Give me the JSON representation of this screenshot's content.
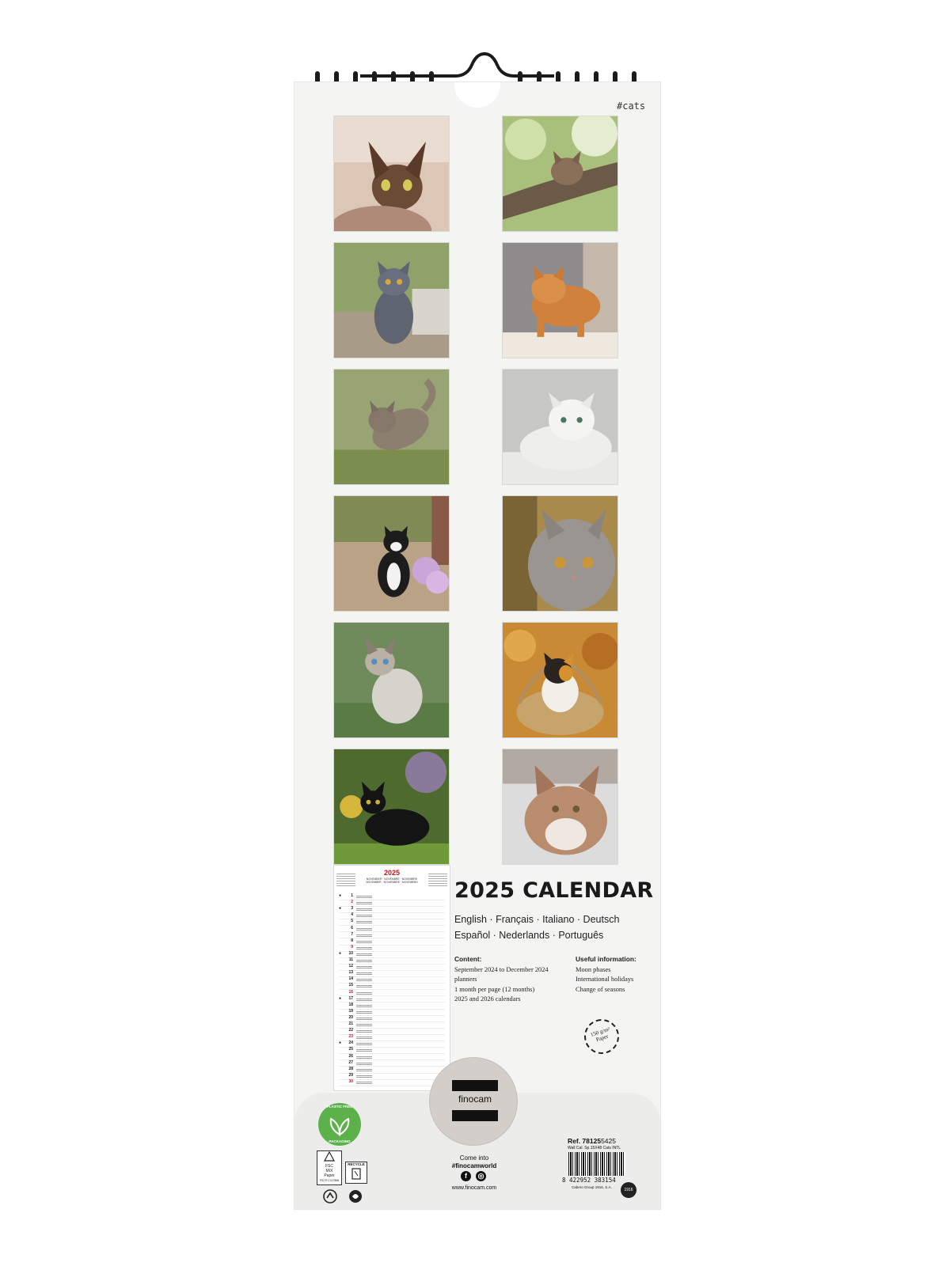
{
  "hashtag": "#cats",
  "photos": [
    {
      "label": "sphynx-cat"
    },
    {
      "label": "kitten-in-tree"
    },
    {
      "label": "british-shorthair-cat"
    },
    {
      "label": "ginger-cat"
    },
    {
      "label": "tabby-cat-in-grass"
    },
    {
      "label": "persian-white-cat"
    },
    {
      "label": "tuxedo-cat"
    },
    {
      "label": "grey-longhair-kitten"
    },
    {
      "label": "siamese-cat"
    },
    {
      "label": "calico-kitten-in-basket"
    },
    {
      "label": "black-cat"
    },
    {
      "label": "cat-in-snow"
    }
  ],
  "planner": {
    "year": "2025",
    "month_names": [
      "NOVEMBER · NOVEMBRE · NOVEMBRE",
      "NOVEMBER · NOVIEMBRE · NOVEMBRO"
    ],
    "days": [
      "1",
      "2",
      "3",
      "4",
      "5",
      "6",
      "7",
      "8",
      "9",
      "10",
      "11",
      "12",
      "13",
      "14",
      "15",
      "16",
      "17",
      "18",
      "19",
      "20",
      "21",
      "22",
      "23",
      "24",
      "25",
      "26",
      "27",
      "28",
      "29",
      "30"
    ],
    "red_days": [
      "2",
      "9",
      "16",
      "23",
      "30"
    ]
  },
  "title": {
    "year": "2025",
    "word": "CALENDAR"
  },
  "languages": {
    "line1": "English · Français · Italiano · Deutsch",
    "line2": "Español · Nederlands · Português"
  },
  "content": {
    "heading": "Content:",
    "lines": [
      "September 2024 to December 2024",
      "planners",
      "1 month per page (12 months)",
      "2025 and 2026 calendars"
    ]
  },
  "useful": {
    "heading": "Useful information:",
    "lines": [
      "Moon phases",
      "International holidays",
      "Change of seasons"
    ]
  },
  "paper_badge": {
    "line1": "150 g/m²",
    "line2": "Paper"
  },
  "brand": {
    "name": "finocam"
  },
  "badges": {
    "plastic_top": "PLASTIC FREE",
    "plastic_bottom": "PACKAGING",
    "fsc": "FSC",
    "fsc_sub": "MIX",
    "fsc_paper": "Paper",
    "fsc_code": "FSC® C117886",
    "recycle": "RECYCLE"
  },
  "social": {
    "come_into": "Come into",
    "hashtag": "#finocamworld",
    "facebook": "f",
    "instagram": "◎",
    "website": "www.finocam.com"
  },
  "product": {
    "ref_label": "Ref. 78125",
    "ref_suffix": "5425",
    "description": "Wall Cal. Sp.15X48 Cats INTL",
    "barcode_number": "8 422952 383154",
    "company": "Cabero Group 1916, S.A.",
    "seal": "1916"
  },
  "colors": {
    "accent_red": "#c0171e",
    "eco_green": "#5db14a",
    "board": "#f4f4f3"
  }
}
